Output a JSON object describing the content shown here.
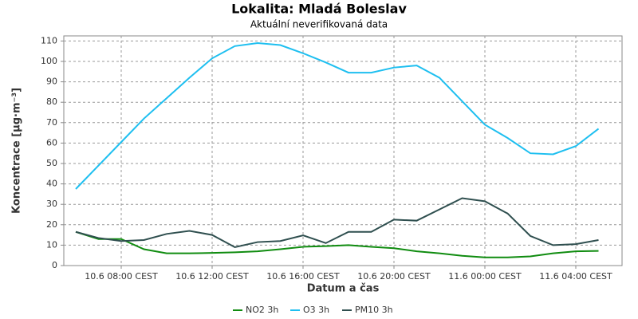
{
  "chart_data": {
    "type": "line",
    "title": "Lokalita: Mladá Boleslav",
    "subtitle": "Aktuální neverifikovaná data",
    "x_label": "Datum a čas",
    "y_label": "Koncentrace [µg·m⁻³]",
    "x": [
      "10.6 06:00",
      "10.6 07:00",
      "10.6 08:00",
      "10.6 09:00",
      "10.6 10:00",
      "10.6 11:00",
      "10.6 12:00",
      "10.6 13:00",
      "10.6 14:00",
      "10.6 15:00",
      "10.6 16:00",
      "10.6 17:00",
      "10.6 18:00",
      "10.6 19:00",
      "10.6 20:00",
      "10.6 21:00",
      "10.6 22:00",
      "10.6 23:00",
      "11.6 00:00",
      "11.6 01:00",
      "11.6 02:00",
      "11.6 03:00",
      "11.6 04:00",
      "11.6 05:00"
    ],
    "xticks": [
      {
        "value": "10.6 08:00",
        "label": "10.6 08:00 CEST"
      },
      {
        "value": "10.6 12:00",
        "label": "10.6 12:00 CEST"
      },
      {
        "value": "10.6 16:00",
        "label": "10.6 16:00 CEST"
      },
      {
        "value": "10.6 20:00",
        "label": "10.6 20:00 CEST"
      },
      {
        "value": "11.6 00:00",
        "label": "11.6 00:00 CEST"
      },
      {
        "value": "11.6 04:00",
        "label": "11.6 04:00 CEST"
      }
    ],
    "ylim": [
      0,
      112.5
    ],
    "yticks": [
      0,
      10,
      20,
      30,
      40,
      50,
      60,
      70,
      80,
      90,
      100,
      110
    ],
    "grid": true,
    "legend": "bottom",
    "series": [
      {
        "name": "NO2 3h",
        "color": "#108c10",
        "values": [
          16.5,
          13,
          13,
          8,
          6,
          6,
          6.2,
          6.5,
          7,
          8,
          9.2,
          9.5,
          10,
          9.2,
          8.5,
          7,
          6,
          4.8,
          4,
          4,
          4.5,
          6,
          7,
          7.2
        ]
      },
      {
        "name": "O3 3h",
        "color": "#1ebff0",
        "values": [
          37.5,
          49,
          60.5,
          72,
          82,
          92,
          101.5,
          107.5,
          109,
          108,
          104,
          99.5,
          94.5,
          94.5,
          97,
          98,
          92,
          80.5,
          69,
          62.5,
          55,
          54.5,
          58.5,
          67
        ]
      },
      {
        "name": "PM10 3h",
        "color": "#2f4f4f",
        "values": [
          16.5,
          13.5,
          12,
          12.5,
          15.5,
          17,
          15,
          9,
          11.5,
          12,
          14.8,
          11,
          16.5,
          16.5,
          22.5,
          22,
          27.5,
          33,
          31.5,
          25.5,
          14.5,
          10,
          10.5,
          12.5
        ]
      }
    ]
  }
}
